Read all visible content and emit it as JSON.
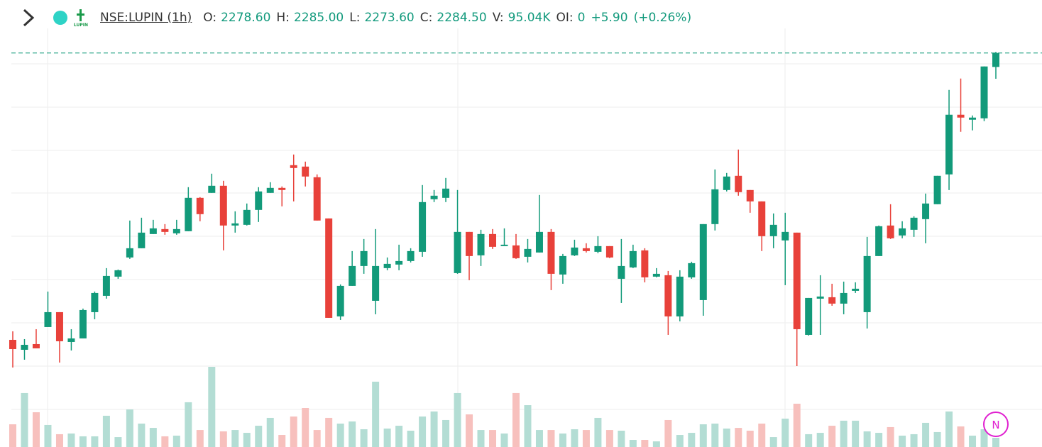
{
  "header": {
    "symbol": "NSE:LUPIN (1h)",
    "logo_text": "LUPIN",
    "badge": "N",
    "items": [
      {
        "label": "O:",
        "value": "2278.60"
      },
      {
        "label": "H:",
        "value": "2285.00"
      },
      {
        "label": "L:",
        "value": "2273.60"
      },
      {
        "label": "C:",
        "value": "2284.50"
      },
      {
        "label": "V:",
        "value": "95.04K"
      },
      {
        "label": "OI:",
        "value": "0"
      }
    ],
    "change": "+5.90",
    "change_pct": "(+0.26%)"
  },
  "chart_data": {
    "type": "candlestick",
    "up_color": "#129a7a",
    "down_color": "#e8413a",
    "up_volume_color": "#b3ddd4",
    "down_volume_color": "#f7c0bd",
    "last_price_line": true,
    "open": [
      2163.3,
      2159.1,
      2161.5,
      2168.7,
      2175.0,
      2162.4,
      2163.9,
      2175.0,
      2181.9,
      2190.0,
      2198.1,
      2202.0,
      2208.0,
      2210.1,
      2208.3,
      2209.2,
      2223.3,
      2225.4,
      2228.4,
      2211.6,
      2211.9,
      2218.2,
      2225.4,
      2227.5,
      2237.1,
      2236.5,
      2232.0,
      2214.6,
      2173.2,
      2186.1,
      2194.5,
      2179.8,
      2193.6,
      2195.1,
      2196.6,
      2200.5,
      2222.7,
      2223.3,
      2191.5,
      2208.9,
      2199.0,
      2208.0,
      2202.9,
      2203.2,
      2198.4,
      2200.2,
      2208.9,
      2190.9,
      2199.0,
      2202.0,
      2200.5,
      2202.9,
      2189.1,
      2193.9,
      2201.1,
      2190.0,
      2190.6,
      2173.2,
      2189.7,
      2180.1,
      2212.2,
      2226.6,
      2232.6,
      2226.6,
      2221.8,
      2207.1,
      2205.3,
      2208.6,
      2165.4,
      2180.7,
      2181.3,
      2178.6,
      2184.0,
      2175.0,
      2198.7,
      2211.6,
      2207.4,
      2209.8,
      2214.3,
      2220.6,
      2233.2,
      2258.4,
      2256.3,
      2256.9,
      2278.6
    ],
    "high": [
      2166.9,
      2163.6,
      2167.8,
      2183.7,
      2175.0,
      2167.8,
      2176.5,
      2183.7,
      2193.6,
      2193.0,
      2213.7,
      2214.9,
      2214.0,
      2212.2,
      2214.0,
      2227.8,
      2223.6,
      2233.5,
      2230.5,
      2217.6,
      2220.9,
      2227.8,
      2229.9,
      2228.1,
      2241.6,
      2238.6,
      2233.2,
      2214.6,
      2186.7,
      2200.8,
      2205.9,
      2210.1,
      2198.1,
      2203.5,
      2202.0,
      2228.7,
      2226.6,
      2231.7,
      2226.6,
      2208.9,
      2209.8,
      2210.1,
      2210.4,
      2208.0,
      2205.9,
      2224.5,
      2210.1,
      2199.6,
      2205.6,
      2204.1,
      2207.1,
      2202.9,
      2205.9,
      2203.5,
      2202.0,
      2193.6,
      2192.4,
      2192.7,
      2196.3,
      2212.2,
      2235.3,
      2233.8,
      2243.7,
      2226.6,
      2221.8,
      2216.7,
      2217.0,
      2208.6,
      2181.0,
      2190.6,
      2187.0,
      2187.9,
      2187.6,
      2206.8,
      2211.6,
      2220.6,
      2213.4,
      2215.5,
      2225.1,
      2232.6,
      2268.9,
      2273.7,
      2258.1,
      2278.8,
      2285
    ],
    "low": [
      2151.6,
      2154.9,
      2159.7,
      2168.7,
      2153.7,
      2158.8,
      2163.9,
      2172.0,
      2180.7,
      2189.1,
      2197.5,
      2202.0,
      2208.0,
      2207.7,
      2207.7,
      2209.2,
      2213.4,
      2225.4,
      2201.1,
      2208.6,
      2211.6,
      2213.1,
      2225.4,
      2219.7,
      2221.8,
      2228.1,
      2213.7,
      2172.6,
      2171.7,
      2186.1,
      2191.2,
      2174.1,
      2192.7,
      2192.7,
      2196.0,
      2198.4,
      2221.5,
      2221.5,
      2191.2,
      2188.5,
      2194.5,
      2201.7,
      2202.9,
      2197.5,
      2196.0,
      2200.2,
      2184.3,
      2187.0,
      2198.7,
      2200.2,
      2199.9,
      2197.8,
      2178.9,
      2193.6,
      2187.6,
      2189.7,
      2165.4,
      2171.1,
      2189.1,
      2173.5,
      2209.5,
      2226.0,
      2224.2,
      2217.0,
      2200.8,
      2202.0,
      2186.4,
      2152.2,
      2165.1,
      2165.4,
      2177.7,
      2174.1,
      2183.1,
      2168.1,
      2198.7,
      2205.9,
      2206.2,
      2206.8,
      2204.1,
      2220.6,
      2226.6,
      2251.2,
      2251.8,
      2255.7,
      2273.6
    ],
    "close": [
      2159.4,
      2161.2,
      2159.7,
      2175.0,
      2162.7,
      2163.9,
      2175.9,
      2183.1,
      2190.3,
      2192.7,
      2202.0,
      2208.6,
      2210.4,
      2208.9,
      2210.1,
      2223.3,
      2216.4,
      2228.4,
      2211.6,
      2212.5,
      2218.2,
      2226.0,
      2227.5,
      2226.6,
      2235.9,
      2232.3,
      2213.7,
      2172.6,
      2186.1,
      2194.5,
      2200.8,
      2194.5,
      2195.4,
      2196.6,
      2200.8,
      2221.5,
      2224.2,
      2227.2,
      2208.9,
      2198.7,
      2208.0,
      2202.6,
      2203.5,
      2197.8,
      2201.7,
      2208.9,
      2191.2,
      2198.7,
      2202.3,
      2200.8,
      2202.9,
      2198.1,
      2194.5,
      2200.8,
      2189.7,
      2191.2,
      2173.2,
      2190.0,
      2195.7,
      2212.2,
      2226.9,
      2232.3,
      2225.7,
      2221.8,
      2207.1,
      2211.9,
      2208.9,
      2167.8,
      2181.0,
      2181.6,
      2178.6,
      2183.1,
      2184.9,
      2198.7,
      2211.3,
      2206.2,
      2210.4,
      2214.9,
      2220.9,
      2232.6,
      2258.4,
      2257.2,
      2257.2,
      2278.8,
      2284.5
    ],
    "volume": [
      234000,
      556000,
      358000,
      227000,
      132000,
      139000,
      110000,
      110000,
      322000,
      102000,
      387000,
      241000,
      197000,
      110000,
      117000,
      461000,
      175000,
      826000,
      161000,
      175000,
      146000,
      219000,
      300000,
      124000,
      314000,
      402000,
      175000,
      300000,
      241000,
      263000,
      183000,
      673000,
      190000,
      219000,
      168000,
      314000,
      366000,
      278000,
      556000,
      336000,
      175000,
      175000,
      139000,
      556000,
      431000,
      175000,
      175000,
      139000,
      183000,
      175000,
      300000,
      175000,
      168000,
      73000,
      73000,
      58000,
      278000,
      124000,
      146000,
      234000,
      241000,
      190000,
      197000,
      168000,
      241000,
      102000,
      292000,
      446000,
      132000,
      146000,
      219000,
      271000,
      271000,
      161000,
      146000,
      205000,
      117000,
      132000,
      249000,
      154000,
      366000,
      212000,
      117000,
      183000,
      95040
    ]
  }
}
